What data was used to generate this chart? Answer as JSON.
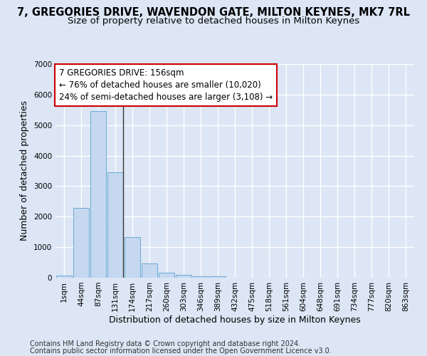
{
  "title": "7, GREGORIES DRIVE, WAVENDON GATE, MILTON KEYNES, MK7 7RL",
  "subtitle": "Size of property relative to detached houses in Milton Keynes",
  "xlabel": "Distribution of detached houses by size in Milton Keynes",
  "ylabel": "Number of detached properties",
  "footnote1": "Contains HM Land Registry data © Crown copyright and database right 2024.",
  "footnote2": "Contains public sector information licensed under the Open Government Licence v3.0.",
  "bar_labels": [
    "1sqm",
    "44sqm",
    "87sqm",
    "131sqm",
    "174sqm",
    "217sqm",
    "260sqm",
    "303sqm",
    "346sqm",
    "389sqm",
    "432sqm",
    "475sqm",
    "518sqm",
    "561sqm",
    "604sqm",
    "648sqm",
    "691sqm",
    "734sqm",
    "777sqm",
    "820sqm",
    "863sqm"
  ],
  "bar_values": [
    80,
    2280,
    5470,
    3450,
    1320,
    470,
    160,
    85,
    55,
    45,
    0,
    0,
    0,
    0,
    0,
    0,
    0,
    0,
    0,
    0,
    0
  ],
  "bar_color": "#c5d8f0",
  "bar_edge_color": "#6aaad4",
  "highlight_bar_index": 3,
  "highlight_line_color": "#333333",
  "ylim": [
    0,
    7000
  ],
  "yticks": [
    0,
    1000,
    2000,
    3000,
    4000,
    5000,
    6000,
    7000
  ],
  "annotation_line1": "7 GREGORIES DRIVE: 156sqm",
  "annotation_line2": "← 76% of detached houses are smaller (10,020)",
  "annotation_line3": "24% of semi-detached houses are larger (3,108) →",
  "annotation_box_color": "#ffffff",
  "annotation_box_edge_color": "#cc0000",
  "bg_color": "#dce6f5",
  "plot_bg_color": "#dce6f5",
  "grid_color": "#ffffff",
  "title_fontsize": 10.5,
  "subtitle_fontsize": 9.5,
  "xlabel_fontsize": 9,
  "ylabel_fontsize": 9,
  "tick_fontsize": 7.5,
  "annotation_fontsize": 8.5,
  "footnote_fontsize": 7
}
